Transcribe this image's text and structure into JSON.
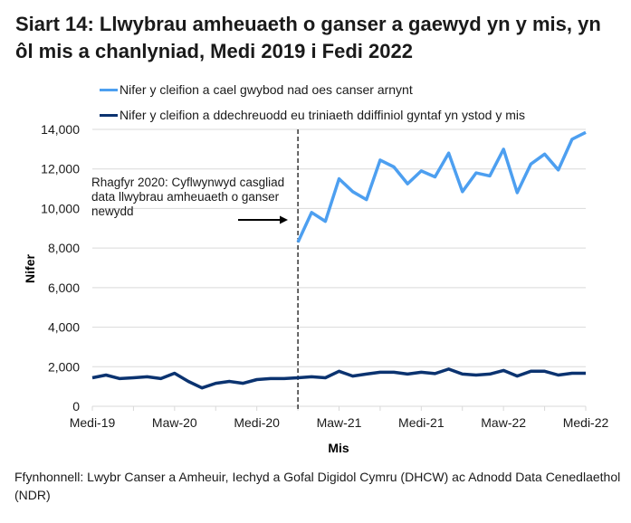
{
  "title": "Siart 14: Llwybrau amheuaeth o ganser a gaewyd yn y mis, yn ôl mis a chanlyniad, Medi 2019 i Fedi 2022",
  "legend": [
    {
      "label": "Nifer y cleifion a cael gwybod nad oes canser arnynt",
      "color": "#4d9ff0"
    },
    {
      "label": "Nifer y cleifion a ddechreuodd eu triniaeth ddiffiniol gyntaf yn ystod y mis",
      "color": "#0b3370"
    }
  ],
  "annotation": "Rhagfyr 2020: Cyflwynwyd casgliad data llwybrau amheuaeth o ganser newydd",
  "source": "Ffynhonnell: Lwybr Canser a Amheuir, Iechyd a Gofal Digidol Cymru (DHCW) ac Adnodd Data Cenedlaethol (NDR)",
  "chart_data": {
    "type": "line",
    "title": "Siart 14: Llwybrau amheuaeth o ganser a gaewyd yn y mis, yn ôl mis a chanlyniad, Medi 2019 i Fedi 2022",
    "xlabel": "Mis",
    "ylabel": "Nifer",
    "ylim": [
      0,
      14000
    ],
    "yticks": [
      0,
      2000,
      4000,
      6000,
      8000,
      10000,
      12000,
      14000
    ],
    "ytick_labels": [
      "0",
      "2,000",
      "4,000",
      "6,000",
      "8,000",
      "10,000",
      "12,000",
      "14,000"
    ],
    "xtick_labels": [
      "Medi-19",
      "Maw-20",
      "Medi-20",
      "Maw-21",
      "Medi-21",
      "Maw-22",
      "Medi-22"
    ],
    "grid": true,
    "legend_position": "top",
    "x": [
      "2019-09",
      "2019-10",
      "2019-11",
      "2019-12",
      "2020-01",
      "2020-02",
      "2020-03",
      "2020-04",
      "2020-05",
      "2020-06",
      "2020-07",
      "2020-08",
      "2020-09",
      "2020-10",
      "2020-11",
      "2020-12",
      "2021-01",
      "2021-02",
      "2021-03",
      "2021-04",
      "2021-05",
      "2021-06",
      "2021-07",
      "2021-08",
      "2021-09",
      "2021-10",
      "2021-11",
      "2021-12",
      "2022-01",
      "2022-02",
      "2022-03",
      "2022-04",
      "2022-05",
      "2022-06",
      "2022-07",
      "2022-08",
      "2022-09"
    ],
    "vline": {
      "x_index": 15,
      "style": "dashed",
      "label": "Rhagfyr 2020: Cyflwynwyd casgliad data llwybrau amheuaeth o ganser newydd"
    },
    "series": [
      {
        "name": "Nifer y cleifion a cael gwybod nad oes canser arnynt",
        "color": "#4d9ff0",
        "start_index": 15,
        "values": [
          8300,
          9800,
          9350,
          11500,
          10850,
          10450,
          12450,
          12100,
          11250,
          11900,
          11600,
          12800,
          10850,
          11800,
          11650,
          13000,
          10800,
          12250,
          12750,
          11950,
          13500,
          13850
        ]
      },
      {
        "name": "Nifer y cleifion a ddechreuodd eu triniaeth ddiffiniol gyntaf yn ystod y mis",
        "color": "#0b3370",
        "start_index": 0,
        "values": [
          1440,
          1580,
          1400,
          1440,
          1490,
          1400,
          1670,
          1260,
          930,
          1160,
          1260,
          1160,
          1350,
          1400,
          1400,
          1440,
          1490,
          1440,
          1770,
          1530,
          1630,
          1720,
          1720,
          1630,
          1720,
          1650,
          1880,
          1630,
          1580,
          1630,
          1810,
          1530,
          1770,
          1770,
          1580,
          1670,
          1670
        ]
      }
    ]
  }
}
